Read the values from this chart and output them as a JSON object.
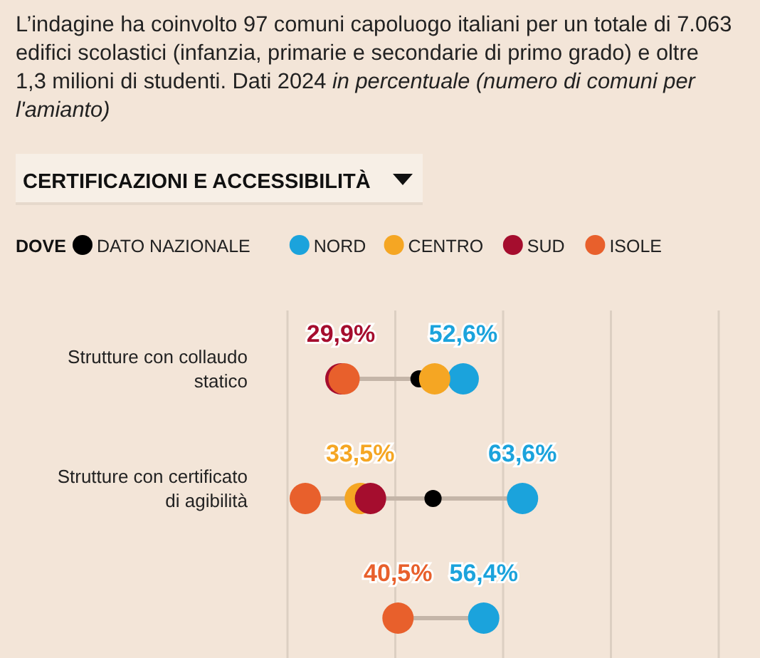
{
  "chart_data": {
    "type": "scatter",
    "title": "CERTIFICAZIONI E ACCESSIBILITÀ",
    "subtitle": "L’indagine ha coinvolto 97 comuni capoluogo italiani per un totale di 7.063 edifici scolastici (infanzia, primarie e secondarie di primo grado) e oltre 1,3 milioni di studenti. Dati 2024",
    "annotations": [
      "in percentuale (numero di comuni per l'amianto)"
    ],
    "categories": [
      "Strutture con collaudo statico",
      "Strutture con certificato di agibilità",
      null
    ],
    "orientation": "horizontal",
    "legend_title": "DOVE",
    "legend": "top left",
    "grid": "x",
    "marker": "circle",
    "xlim": [
      20,
      100
    ],
    "xticks": [
      {
        "value": 20,
        "label": null
      },
      {
        "value": 40,
        "label": null
      },
      {
        "value": 60,
        "label": null
      },
      {
        "value": 80,
        "label": null
      },
      {
        "value": 100,
        "label": null
      }
    ],
    "series": [
      {
        "name": "DATO NAZIONALE",
        "color": "#000000",
        "values": [
          44.4,
          47.0,
          null
        ]
      },
      {
        "name": "NORD",
        "color": "#1ba3dc",
        "values": [
          52.6,
          63.6,
          56.4
        ],
        "value_labels": [
          "52,6%",
          "63,6%",
          "56,4%"
        ]
      },
      {
        "name": "CENTRO",
        "color": "#f5a623",
        "values": [
          47.3,
          33.5,
          null
        ],
        "value_labels": [
          null,
          "33,5%",
          null
        ]
      },
      {
        "name": "SUD",
        "color": "#a50d2e",
        "values": [
          29.9,
          35.4,
          null
        ],
        "value_labels": [
          "29,9%",
          null,
          null
        ]
      },
      {
        "name": "ISOLE",
        "color": "#e8602c",
        "values": [
          30.5,
          23.3,
          40.5
        ],
        "value_labels": [
          null,
          null,
          "40,5%"
        ]
      }
    ]
  }
}
